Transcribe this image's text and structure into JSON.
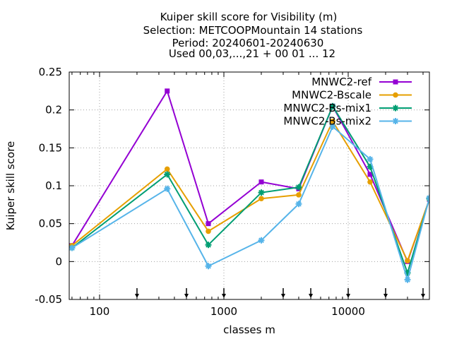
{
  "chart_data": {
    "type": "line",
    "title_lines": [
      "Kuiper skill score  for Visibility (m)",
      "Selection: METCOOPMountain     14 stations",
      "Period: 20240601-20240630",
      "Used 00,03,...,21 + 00 01 ... 12"
    ],
    "xlabel": "classes m",
    "ylabel": "Kuiper skill score",
    "x_scale": "log",
    "xlim": [
      57,
      45000
    ],
    "ylim": [
      -0.05,
      0.25
    ],
    "x_ticks": [
      100,
      1000,
      10000
    ],
    "x_tick_labels": [
      "100",
      "1000",
      "10000"
    ],
    "y_ticks": [
      -0.05,
      0,
      0.05,
      0.1,
      0.15,
      0.2,
      0.25
    ],
    "y_tick_labels": [
      "-0.05",
      "0",
      "0.05",
      "0.1",
      "0.15",
      "0.2",
      "0.25"
    ],
    "grid": true,
    "legend_position": "top-right",
    "class_markers_x": [
      200,
      500,
      1000,
      3000,
      5000,
      10000,
      20000,
      40000
    ],
    "series": [
      {
        "name": "MNWC2-ref",
        "color": "#9400d3",
        "marker": "square",
        "x": [
          60,
          350,
          750,
          2000,
          4000,
          7500,
          15000,
          30000,
          45000
        ],
        "y": [
          0.021,
          0.225,
          0.05,
          0.105,
          0.096,
          0.205,
          0.115,
          0.0,
          0.082
        ]
      },
      {
        "name": "MNWC2-Bscale",
        "color": "#e69f00",
        "marker": "circle",
        "x": [
          60,
          350,
          750,
          2000,
          4000,
          7500,
          15000,
          30000,
          45000
        ],
        "y": [
          0.021,
          0.122,
          0.04,
          0.083,
          0.088,
          0.185,
          0.105,
          0.001,
          0.082
        ]
      },
      {
        "name": "MNWC2-Bs-mix1",
        "color": "#009e73",
        "marker": "star",
        "x": [
          60,
          350,
          750,
          2000,
          4000,
          7500,
          15000,
          30000,
          45000
        ],
        "y": [
          0.018,
          0.115,
          0.022,
          0.091,
          0.098,
          0.205,
          0.125,
          -0.015,
          0.083
        ]
      },
      {
        "name": "MNWC2-Bs-mix2",
        "color": "#56b4e9",
        "marker": "star",
        "x": [
          60,
          350,
          750,
          2000,
          4000,
          7500,
          15000,
          30000,
          45000
        ],
        "y": [
          0.018,
          0.096,
          -0.006,
          0.028,
          0.076,
          0.178,
          0.135,
          -0.024,
          0.084
        ]
      }
    ]
  }
}
